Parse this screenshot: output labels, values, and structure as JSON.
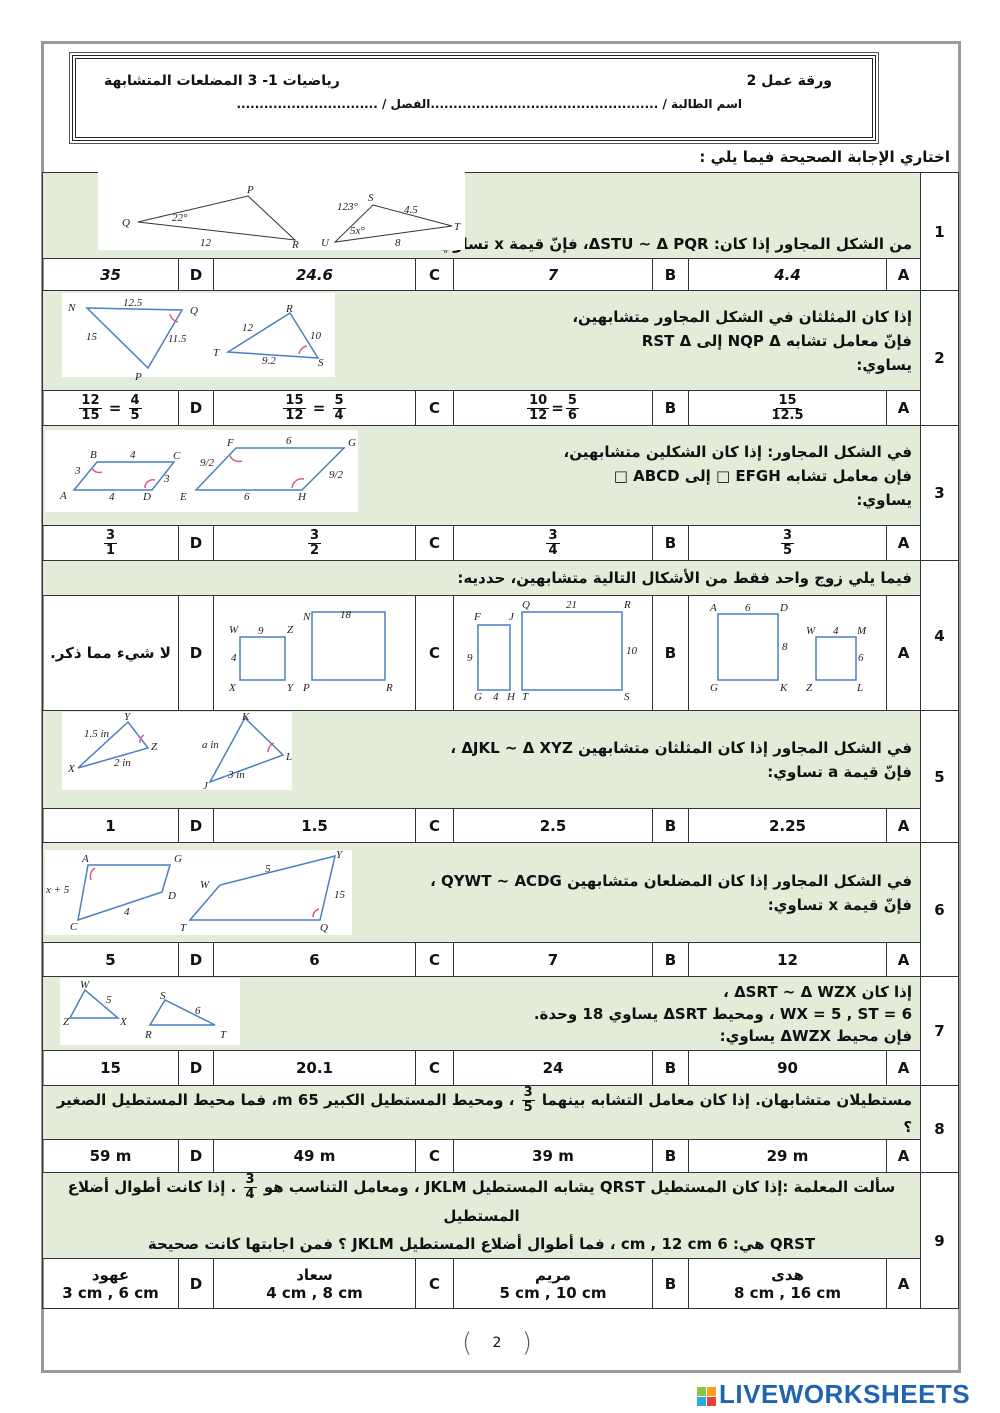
{
  "header": {
    "worksheet": "ورقة عمل 2",
    "subject": "رياضيات  1- 3 المضلعات المتشابهة",
    "student_line": "اسم الطالبة / ..................................................الفصل /   ..............................."
  },
  "instruction": "اختاري الإجابة الصحيحة فيما يلي :",
  "questions": [
    {
      "number": "1",
      "lines": [
        "من  الشكل المجاور إذا كان: ΔSTU ~ Δ PQR، فإنّ قيمة x تساوي:"
      ],
      "options": {
        "A": "4.4",
        "B": "7",
        "C": "24.6",
        "D": "35"
      },
      "figure": {
        "Q": "Q",
        "P": "P",
        "R": "R",
        "angle1": "22°",
        "side1": "12",
        "S": "S",
        "T": "T",
        "U": "U",
        "angle2": "123°",
        "side2": "4.5",
        "angle3": "5x°",
        "side3": "8"
      }
    },
    {
      "number": "2",
      "lines": [
        "إذا كان المثلثان في الشكل المجاور متشابهين،",
        "فإنّ معامل تشابه NQP Δ إلى RST Δ",
        "يساوي:"
      ],
      "options": {
        "A": {
          "n": "15",
          "d": "12.5"
        },
        "B": {
          "n": "10",
          "d": "12",
          "n2": "5",
          "d2": "6"
        },
        "C": {
          "n": "15",
          "d": "12",
          "n2": "5",
          "d2": "4"
        },
        "D": {
          "n": "12",
          "d": "15",
          "n2": "4",
          "d2": "5"
        }
      },
      "figure": {
        "N": "N",
        "Q": "Q",
        "P": "P",
        "NQ": "12.5",
        "NP": "15",
        "QP": "11.5",
        "R": "R",
        "T": "T",
        "S": "S",
        "RT": "12",
        "RS": "10",
        "TS": "9.2"
      }
    },
    {
      "number": "3",
      "lines": [
        "في الشكل المجاور: إذا كان الشكلين متشابهين،",
        "فإن معامل تشابه EFGH  □  إلى ABCD  □",
        "يساوي:"
      ],
      "options": {
        "A": {
          "n": "3",
          "d": "5"
        },
        "B": {
          "n": "3",
          "d": "4"
        },
        "C": {
          "n": "3",
          "d": "2"
        },
        "D": {
          "n": "3",
          "d": "1"
        }
      },
      "figure": {
        "A": "A",
        "B": "B",
        "C": "C",
        "D": "D",
        "AB": "3",
        "BC": "4",
        "CD": "3",
        "AD": "4",
        "E": "E",
        "F": "F",
        "G": "G",
        "H": "H",
        "FG": "6",
        "EH": "6",
        "EF": "9/2",
        "GH": "9/2"
      }
    },
    {
      "number": "4",
      "lines": [
        "فيما يلي زوج واحد فقط من الأشكال التالية متشابهين، حدديه:"
      ],
      "options": {
        "A": {
          "A": "A",
          "D": "D",
          "G": "G",
          "K": "K",
          "AD": "6",
          "DK": "8",
          "W": "W",
          "M": "M",
          "Z": "Z",
          "L": "L",
          "WM": "4",
          "ML": "6"
        },
        "B": {
          "F": "F",
          "J": "J",
          "G": "G",
          "H": "H",
          "FG": "9",
          "GH": "4",
          "Q": "Q",
          "R": "R",
          "T": "T",
          "S": "S",
          "QR": "21",
          "RS": "10"
        },
        "C": {
          "W": "W",
          "Z": "Z",
          "X": "X",
          "Y": "Y",
          "WZ": "9",
          "WX": "4",
          "N": "N",
          "R": "R",
          "P": "P",
          "NR": "18"
        },
        "D": "لا شيء مما ذكر."
      }
    },
    {
      "number": "5",
      "lines": [
        "في الشكل المجاور إذا كان المثلثان متشابهين  ΔJKL ~ Δ XYZ ،",
        "فإنّ قيمة a تساوي:"
      ],
      "options": {
        "A": "2.25",
        "B": "2.5",
        "C": "1.5",
        "D": "1"
      },
      "figure": {
        "X": "X",
        "Y": "Y",
        "Z": "Z",
        "XY": "1.5 in",
        "XZ": "2 in",
        "J": "J",
        "K": "K",
        "L": "L",
        "JK": "a in",
        "JL": "3 in"
      }
    },
    {
      "number": "6",
      "lines": [
        "في الشكل المجاور إذا كان المضلعان متشابهين  QYWT ~ ACDG ،",
        "فإنّ قيمة x تساوي:"
      ],
      "options": {
        "A": "12",
        "B": "7",
        "C": "6",
        "D": "5"
      },
      "figure": {
        "A": "A",
        "G": "G",
        "D": "D",
        "C": "C",
        "AC": "x + 5",
        "CD": "4",
        "W": "W",
        "Y": "Y",
        "T": "T",
        "Q": "Q",
        "WY": "5",
        "YQ": "15"
      }
    },
    {
      "number": "7",
      "lines": [
        "إذا كان  ΔSRT ~ Δ WZX ،",
        "WX = 5 , ST = 6 ، ومحيط ΔSRT  يساوي  18 وحدة.",
        "فإن محيط ΔWZX  يساوي:"
      ],
      "options": {
        "A": "90",
        "B": "24",
        "C": "20.1",
        "D": "15"
      },
      "figure": {
        "W": "W",
        "Z": "Z",
        "X": "X",
        "WX": "5",
        "S": "S",
        "R": "R",
        "T": "T",
        "ST": "6"
      }
    },
    {
      "number": "8",
      "before": "مستطيلان متشابهان. إذا كان معامل التشابه بينهما",
      "frac": {
        "n": "3",
        "d": "5"
      },
      "after": "، ومحيط المستطيل الكبير 65 m، فما محيط المستطيل الصغير ؟",
      "options": {
        "A": "29 m",
        "B": "39 m",
        "C": "49 m",
        "D": "59 m"
      }
    },
    {
      "number": "9",
      "before": "سألت المعلمة :إذا كان المستطيل QRST يشابه المستطيل JKLM ، ومعامل التناسب هو",
      "frac": {
        "n": "3",
        "d": "4"
      },
      "after": ". إذا كانت أطوال أضلاع المستطيل",
      "line2": "QRST هي: 6 cm , 12 cm ، فما أطوال أضلاع المستطيل JKLM ؟ فمن اجابتها كانت صحيحة",
      "options": {
        "A": {
          "name": "هدى",
          "value": "8 cm , 16 cm"
        },
        "B": {
          "name": "مريم",
          "value": "5 cm , 10 cm"
        },
        "C": {
          "name": "سعاد",
          "value": "4 cm , 8 cm"
        },
        "D": {
          "name": "عهود",
          "value": "3 cm , 6 cm"
        }
      }
    }
  ],
  "letters": {
    "A": "A",
    "B": "B",
    "C": "C",
    "D": "D"
  },
  "footer": {
    "page": "2",
    "brand": "LIVEWORKSHEETS"
  },
  "colors": {
    "question_bg": "#e3ebd9",
    "figure_line": "#4a7fc1",
    "angle_mark": "#e0559a",
    "brand": "#1f64b0"
  }
}
